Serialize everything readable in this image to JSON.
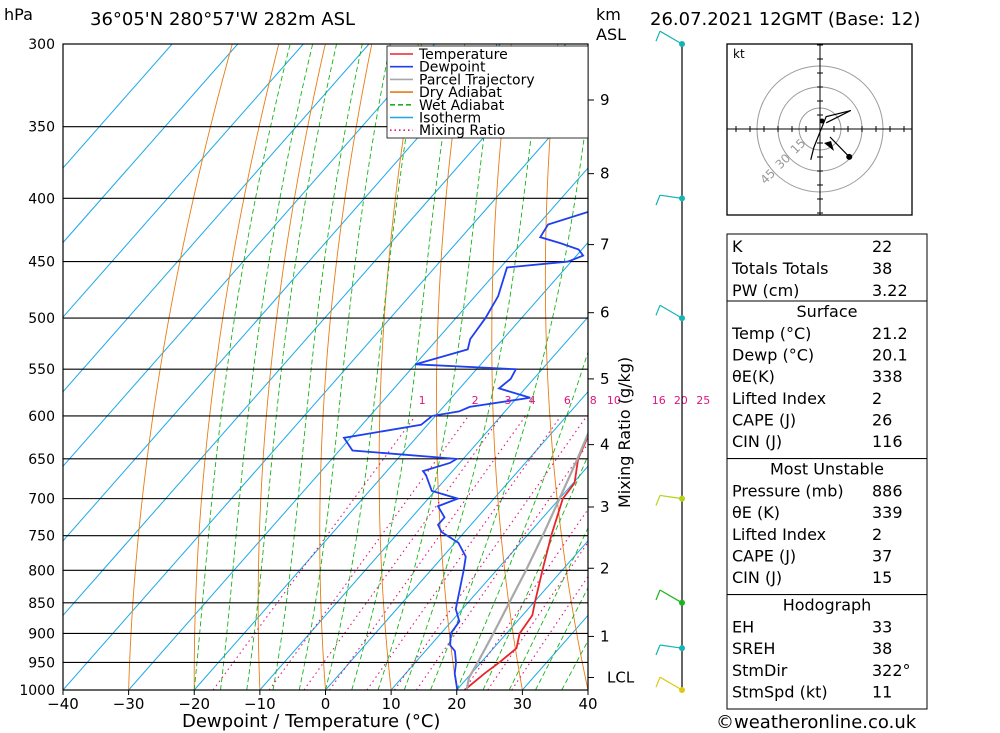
{
  "header": {
    "pressure_unit": "hPa",
    "location": "36°05'N  280°57'W  282m  ASL",
    "height_unit_1": "km",
    "height_unit_2": "ASL",
    "date": "26.07.2021  12GMT  (Base: 12)"
  },
  "chart_data": {
    "type": "skew-t log-p",
    "xlabel": "Dewpoint / Temperature (°C)",
    "ylabel_right": "Mixing Ratio (g/kg)",
    "pressure_range": [
      1000,
      300
    ],
    "temperature_range": [
      -40,
      40
    ],
    "pressure_ticks": [
      300,
      350,
      400,
      450,
      500,
      550,
      600,
      650,
      700,
      750,
      800,
      850,
      900,
      950,
      1000
    ],
    "temperature_ticks": [
      -40,
      -30,
      -20,
      -10,
      0,
      10,
      20,
      30,
      40
    ],
    "height_ticks": [
      {
        "km": "1",
        "p": 905
      },
      {
        "km": "2",
        "p": 797
      },
      {
        "km": "3",
        "p": 711
      },
      {
        "km": "4",
        "p": 633
      },
      {
        "km": "5",
        "p": 560
      },
      {
        "km": "6",
        "p": 495
      },
      {
        "km": "7",
        "p": 436
      },
      {
        "km": "8",
        "p": 382
      },
      {
        "km": "9",
        "p": 333
      }
    ],
    "lcl_label": "LCL",
    "lcl_pressure": 977,
    "mixing_ratio_labels": [
      "1",
      "2",
      "3",
      "4",
      "6",
      "8",
      "10",
      "16",
      "20",
      "25"
    ],
    "mixing_ratio_label_pressure": 590,
    "legend": [
      {
        "name": "Temperature",
        "color": "#e8262a",
        "style": "solid"
      },
      {
        "name": "Dewpoint",
        "color": "#1f3ff0",
        "style": "solid"
      },
      {
        "name": "Parcel Trajectory",
        "color": "#a8a8a8",
        "style": "solid"
      },
      {
        "name": "Dry Adiabat",
        "color": "#e87c14",
        "style": "solid"
      },
      {
        "name": "Wet Adiabat",
        "color": "#18b418",
        "style": "dashed"
      },
      {
        "name": "Isotherm",
        "color": "#1ca8e8",
        "style": "solid"
      },
      {
        "name": "Mixing Ratio",
        "color": "#e0147c",
        "style": "dotted"
      }
    ],
    "series": [
      {
        "name": "Temperature",
        "points": [
          [
            1000,
            21.2
          ],
          [
            970,
            22.0
          ],
          [
            950,
            22.8
          ],
          [
            925,
            23.5
          ],
          [
            900,
            22.0
          ],
          [
            870,
            21.5
          ],
          [
            850,
            20.2
          ],
          [
            800,
            17.0
          ],
          [
            750,
            13.7
          ],
          [
            700,
            10.5
          ],
          [
            680,
            10.2
          ],
          [
            650,
            7.5
          ],
          [
            620,
            5.8
          ],
          [
            600,
            4.4
          ],
          [
            580,
            2.0
          ],
          [
            570,
            1.1
          ],
          [
            560,
            1.3
          ],
          [
            550,
            0.9
          ],
          [
            520,
            -1.5
          ],
          [
            500,
            -3.2
          ],
          [
            470,
            -5.5
          ],
          [
            450,
            -8.0
          ],
          [
            430,
            -9.5
          ],
          [
            400,
            -12.8
          ],
          [
            385,
            -15.5
          ],
          [
            370,
            -16.8
          ],
          [
            360,
            -17.5
          ]
        ]
      },
      {
        "name": "Dewpoint",
        "points": [
          [
            1000,
            20.1
          ],
          [
            970,
            17.5
          ],
          [
            950,
            16.2
          ],
          [
            930,
            14.5
          ],
          [
            920,
            13.0
          ],
          [
            900,
            11.5
          ],
          [
            880,
            11.2
          ],
          [
            860,
            9.0
          ],
          [
            800,
            5.0
          ],
          [
            780,
            3.5
          ],
          [
            760,
            0.5
          ],
          [
            745,
            -3.5
          ],
          [
            735,
            -5.0
          ],
          [
            725,
            -5.0
          ],
          [
            710,
            -7.5
          ],
          [
            700,
            -5.5
          ],
          [
            690,
            -10.5
          ],
          [
            670,
            -13.5
          ],
          [
            665,
            -14.5
          ],
          [
            655,
            -11.5
          ],
          [
            650,
            -11.0
          ],
          [
            640,
            -28.0
          ],
          [
            625,
            -31.0
          ],
          [
            610,
            -21.0
          ],
          [
            600,
            -20.5
          ],
          [
            595,
            -17.0
          ],
          [
            590,
            -16.0
          ],
          [
            580,
            -8.0
          ],
          [
            570,
            -14.0
          ],
          [
            560,
            -13.5
          ],
          [
            550,
            -14.0
          ],
          [
            545,
            -30.0
          ],
          [
            530,
            -24.0
          ],
          [
            520,
            -25.0
          ],
          [
            500,
            -25.5
          ],
          [
            480,
            -26.5
          ],
          [
            455,
            -29.0
          ],
          [
            450,
            -20.5
          ],
          [
            445,
            -19.0
          ],
          [
            440,
            -20.5
          ],
          [
            435,
            -24.0
          ],
          [
            430,
            -28.0
          ],
          [
            420,
            -28.5
          ],
          [
            410,
            -24.0
          ],
          [
            400,
            -22.0
          ],
          [
            390,
            -19.0
          ],
          [
            380,
            -20.5
          ],
          [
            370,
            -21.0
          ],
          [
            360,
            -25.0
          ],
          [
            345,
            -26.0
          ],
          [
            335,
            -28.5
          ],
          [
            320,
            -31.5
          ],
          [
            310,
            -32.5
          ],
          [
            300,
            -30.0
          ]
        ]
      },
      {
        "name": "Parcel Trajectory",
        "points": [
          [
            1000,
            21.5
          ],
          [
            977,
            20.2
          ],
          [
            950,
            19.5
          ],
          [
            900,
            18.0
          ],
          [
            850,
            16.3
          ],
          [
            800,
            14.5
          ],
          [
            750,
            12.4
          ],
          [
            700,
            10.0
          ],
          [
            650,
            7.4
          ],
          [
            600,
            4.4
          ],
          [
            550,
            1.0
          ],
          [
            500,
            -3.2
          ],
          [
            450,
            -8.0
          ],
          [
            400,
            -13.8
          ],
          [
            350,
            -21.0
          ],
          [
            315,
            -27.0
          ],
          [
            305,
            -28.5
          ]
        ]
      }
    ],
    "hodograph": {
      "unit_label": "kt",
      "ring_labels": [
        "15",
        "30",
        "45"
      ],
      "ring_speeds": [
        15,
        30,
        45
      ],
      "wind_path_kt": [
        [
          -3,
          -10
        ],
        [
          -2,
          -6
        ],
        [
          2,
          4
        ],
        [
          10,
          6
        ],
        [
          6,
          4
        ],
        [
          2,
          2
        ]
      ],
      "storm_motion_kt": {
        "u": 6.8,
        "v": -8.7
      }
    },
    "wind_barbs": [
      {
        "p": 300,
        "color": "#14b4b4"
      },
      {
        "p": 400,
        "color": "#14b4b4"
      },
      {
        "p": 500,
        "color": "#14b4b4"
      },
      {
        "p": 700,
        "color": "#b4d214"
      },
      {
        "p": 850,
        "color": "#18b418"
      },
      {
        "p": 925,
        "color": "#14b4b4"
      },
      {
        "p": 1000,
        "color": "#e0c814"
      }
    ]
  },
  "indices": {
    "k_label": "K",
    "k_value": "22",
    "tt_label": "Totals Totals",
    "tt_value": "38",
    "pw_label": "PW (cm)",
    "pw_value": "3.22"
  },
  "surface": {
    "title": "Surface",
    "rows": [
      {
        "label": "Temp (°C)",
        "value": "21.2"
      },
      {
        "label": "Dewp (°C)",
        "value": "20.1"
      },
      {
        "label": "θE(K)",
        "value": "338"
      },
      {
        "label": "Lifted Index",
        "value": "2"
      },
      {
        "label": "CAPE (J)",
        "value": "26"
      },
      {
        "label": "CIN (J)",
        "value": "116"
      }
    ]
  },
  "most_unstable": {
    "title": "Most Unstable",
    "rows": [
      {
        "label": "Pressure (mb)",
        "value": "886"
      },
      {
        "label": "θE (K)",
        "value": "339"
      },
      {
        "label": "Lifted Index",
        "value": "2"
      },
      {
        "label": "CAPE (J)",
        "value": "37"
      },
      {
        "label": "CIN (J)",
        "value": "15"
      }
    ]
  },
  "hodograph_table": {
    "title": "Hodograph",
    "rows": [
      {
        "label": "EH",
        "value": "33"
      },
      {
        "label": "SREH",
        "value": "38"
      },
      {
        "label": "StmDir",
        "value": "322°"
      },
      {
        "label": "StmSpd (kt)",
        "value": "11"
      }
    ]
  },
  "footer": {
    "copyright": "©weatheronline.co.uk"
  }
}
